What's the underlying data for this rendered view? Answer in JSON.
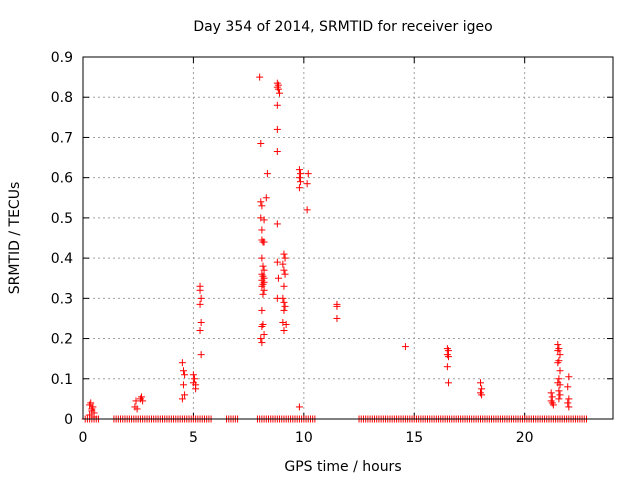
{
  "chart_data": {
    "type": "scatter",
    "title": "Day 354 of 2014, SRMTID for receiver igeo",
    "xlabel": "GPS time / hours",
    "ylabel": "SRMTID / TECUs",
    "xlim": [
      0,
      24
    ],
    "ylim": [
      0,
      0.9
    ],
    "xticks": [
      0,
      5,
      10,
      15,
      20
    ],
    "yticks": [
      0,
      0.1,
      0.2,
      0.3,
      0.4,
      0.5,
      0.6,
      0.7,
      0.8,
      0.9
    ],
    "grid": true,
    "marker": "+",
    "color": "#ff0000",
    "series": [
      {
        "name": "SRMTID",
        "points": [
          [
            0.3,
            0.035
          ],
          [
            0.35,
            0.04
          ],
          [
            0.4,
            0.025
          ],
          [
            0.45,
            0.03
          ],
          [
            0.5,
            0.015
          ],
          [
            0.3,
            0.01
          ],
          [
            0.4,
            0.02
          ],
          [
            0.5,
            0.005
          ],
          [
            2.35,
            0.03
          ],
          [
            2.4,
            0.045
          ],
          [
            2.45,
            0.025
          ],
          [
            2.6,
            0.05
          ],
          [
            2.65,
            0.055
          ],
          [
            2.7,
            0.045
          ],
          [
            4.5,
            0.14
          ],
          [
            4.55,
            0.12
          ],
          [
            4.6,
            0.11
          ],
          [
            4.55,
            0.085
          ],
          [
            4.6,
            0.06
          ],
          [
            4.5,
            0.05
          ],
          [
            5.0,
            0.11
          ],
          [
            5.05,
            0.1
          ],
          [
            5.1,
            0.085
          ],
          [
            5.0,
            0.09
          ],
          [
            5.1,
            0.075
          ],
          [
            5.3,
            0.33
          ],
          [
            5.3,
            0.32
          ],
          [
            5.35,
            0.3
          ],
          [
            5.3,
            0.285
          ],
          [
            5.35,
            0.24
          ],
          [
            5.3,
            0.22
          ],
          [
            5.35,
            0.16
          ],
          [
            8.0,
            0.85
          ],
          [
            8.05,
            0.685
          ],
          [
            8.05,
            0.54
          ],
          [
            8.1,
            0.53
          ],
          [
            8.05,
            0.5
          ],
          [
            8.2,
            0.495
          ],
          [
            8.1,
            0.47
          ],
          [
            8.1,
            0.445
          ],
          [
            8.15,
            0.44
          ],
          [
            8.2,
            0.44
          ],
          [
            8.1,
            0.4
          ],
          [
            8.15,
            0.38
          ],
          [
            8.2,
            0.37
          ],
          [
            8.1,
            0.36
          ],
          [
            8.15,
            0.355
          ],
          [
            8.2,
            0.35
          ],
          [
            8.1,
            0.345
          ],
          [
            8.2,
            0.34
          ],
          [
            8.15,
            0.335
          ],
          [
            8.1,
            0.33
          ],
          [
            8.2,
            0.32
          ],
          [
            8.15,
            0.31
          ],
          [
            8.1,
            0.27
          ],
          [
            8.15,
            0.235
          ],
          [
            8.1,
            0.23
          ],
          [
            8.2,
            0.21
          ],
          [
            8.05,
            0.2
          ],
          [
            8.1,
            0.19
          ],
          [
            8.35,
            0.61
          ],
          [
            8.3,
            0.55
          ],
          [
            8.8,
            0.835
          ],
          [
            8.85,
            0.83
          ],
          [
            8.8,
            0.825
          ],
          [
            8.85,
            0.82
          ],
          [
            8.9,
            0.81
          ],
          [
            8.8,
            0.78
          ],
          [
            8.8,
            0.72
          ],
          [
            8.8,
            0.665
          ],
          [
            8.8,
            0.485
          ],
          [
            8.8,
            0.39
          ],
          [
            8.85,
            0.35
          ],
          [
            8.8,
            0.3
          ],
          [
            9.1,
            0.41
          ],
          [
            9.15,
            0.4
          ],
          [
            9.05,
            0.385
          ],
          [
            9.1,
            0.37
          ],
          [
            9.15,
            0.36
          ],
          [
            9.1,
            0.33
          ],
          [
            9.05,
            0.3
          ],
          [
            9.1,
            0.29
          ],
          [
            9.15,
            0.28
          ],
          [
            9.1,
            0.27
          ],
          [
            9.05,
            0.24
          ],
          [
            9.2,
            0.235
          ],
          [
            9.1,
            0.22
          ],
          [
            9.8,
            0.62
          ],
          [
            9.85,
            0.61
          ],
          [
            9.8,
            0.6
          ],
          [
            9.85,
            0.59
          ],
          [
            9.8,
            0.575
          ],
          [
            10.2,
            0.61
          ],
          [
            10.15,
            0.585
          ],
          [
            10.15,
            0.52
          ],
          [
            9.8,
            0.03
          ],
          [
            11.5,
            0.285
          ],
          [
            11.5,
            0.28
          ],
          [
            11.5,
            0.25
          ],
          [
            14.6,
            0.18
          ],
          [
            16.5,
            0.175
          ],
          [
            16.55,
            0.17
          ],
          [
            16.5,
            0.16
          ],
          [
            16.55,
            0.155
          ],
          [
            16.5,
            0.13
          ],
          [
            16.55,
            0.09
          ],
          [
            18.0,
            0.09
          ],
          [
            18.05,
            0.075
          ],
          [
            18.0,
            0.065
          ],
          [
            18.05,
            0.06
          ],
          [
            21.2,
            0.065
          ],
          [
            21.25,
            0.055
          ],
          [
            21.2,
            0.045
          ],
          [
            21.25,
            0.04
          ],
          [
            21.3,
            0.035
          ],
          [
            21.5,
            0.185
          ],
          [
            21.55,
            0.175
          ],
          [
            21.5,
            0.17
          ],
          [
            21.6,
            0.16
          ],
          [
            21.55,
            0.145
          ],
          [
            21.5,
            0.14
          ],
          [
            21.6,
            0.12
          ],
          [
            21.55,
            0.1
          ],
          [
            21.5,
            0.09
          ],
          [
            21.6,
            0.085
          ],
          [
            21.55,
            0.07
          ],
          [
            21.6,
            0.06
          ],
          [
            21.55,
            0.05
          ],
          [
            22.0,
            0.105
          ],
          [
            21.95,
            0.08
          ],
          [
            22.0,
            0.05
          ],
          [
            21.95,
            0.04
          ],
          [
            22.0,
            0.03
          ]
        ],
        "zero_runs": [
          [
            0.1,
            0.75
          ],
          [
            1.4,
            5.8
          ],
          [
            6.5,
            7.0
          ],
          [
            7.9,
            10.5
          ],
          [
            12.5,
            22.8
          ]
        ]
      }
    ]
  }
}
